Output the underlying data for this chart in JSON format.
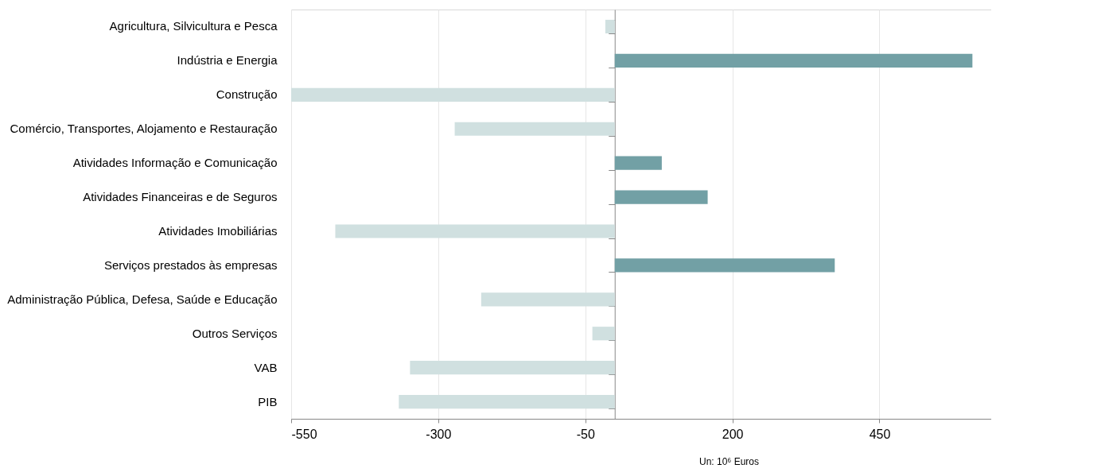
{
  "chart_data": {
    "type": "bar",
    "orientation": "horizontal",
    "xlabel": "Un: 10⁶ Euros",
    "categories": [
      "Agricultura, Silvicultura e Pesca",
      "Indústria e Energia",
      "Construção",
      "Comércio, Transportes, Alojamento e Restauração",
      "Atividades Informação e Comunicação",
      "Atividades Financeiras e de Seguros",
      "Atividades Imobiliárias",
      "Serviços prestados às empresas",
      "Administração Pública, Defesa, Saúde e Educação",
      "Outros Serviços",
      "VAB",
      "PIB"
    ],
    "values": [
      -16,
      608,
      -550,
      -272,
      80,
      158,
      -475,
      374,
      -227,
      -38,
      -348,
      -367
    ],
    "colors": [
      "#d0e0e0",
      "#72a0a5",
      "#d0e0e0",
      "#d0e0e0",
      "#72a0a5",
      "#72a0a5",
      "#d0e0e0",
      "#72a0a5",
      "#d0e0e0",
      "#d0e0e0",
      "#d0e0e0",
      "#d0e0e0"
    ],
    "xlim": [
      -550,
      640
    ],
    "xticks": [
      -550,
      -300,
      -50,
      200,
      450
    ],
    "grid": "x"
  }
}
